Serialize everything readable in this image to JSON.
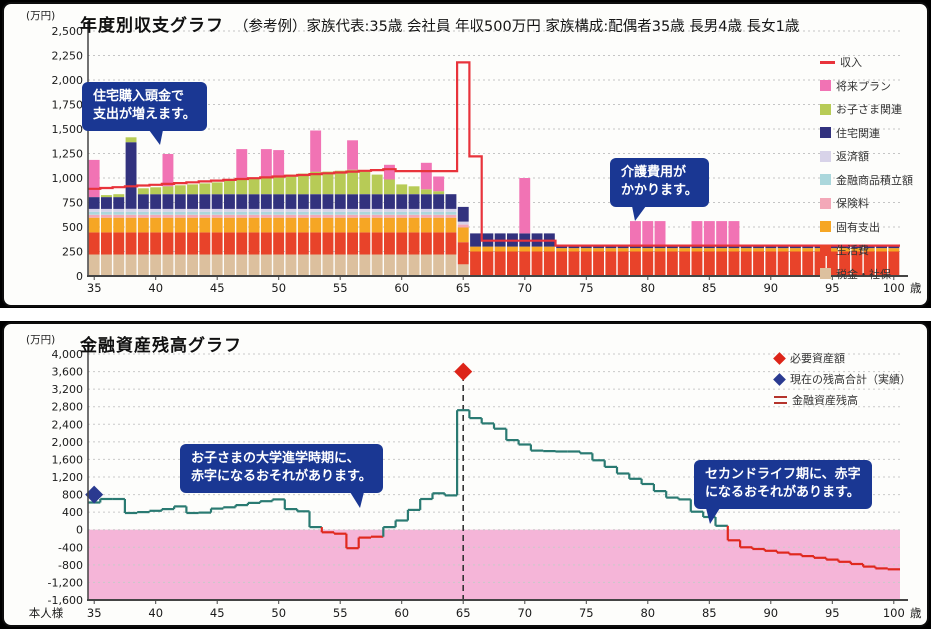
{
  "top_chart": {
    "unit_label": "(万円)",
    "title": "年度別収支グラフ",
    "subtitle": "（参考例）家族代表:35歳 会社員 年収500万円 家族構成:配偶者35歳 長男4歳 長女1歳",
    "annotations": {
      "house": {
        "line1": "住宅購入頭金で",
        "line2": "支出が増えます。"
      },
      "care": {
        "line1": "介護費用が",
        "line2": "かかります。"
      }
    }
  },
  "bottom_chart": {
    "unit_label": "(万円)",
    "title": "金融資産残高グラフ",
    "x_axis_person_label": "本人様",
    "annotations": {
      "college": {
        "line1": "お子さまの大学進学時期に、",
        "line2": "赤字になるおそれがあります。"
      },
      "second_life": {
        "line1": "セカンドライフ期に、赤字",
        "line2": "になるおそれがあります。"
      }
    }
  },
  "chart_data": [
    {
      "type": "bar",
      "stacked": true,
      "title": "年度別収支グラフ",
      "x_start": 35,
      "x_end": 100,
      "x_ticks": [
        35,
        40,
        45,
        50,
        55,
        60,
        65,
        70,
        75,
        80,
        85,
        90,
        95,
        100
      ],
      "x_unit": "歳",
      "ylabel": "(万円)",
      "ylim": [
        0,
        2500
      ],
      "ytick_step": 250,
      "grid": true,
      "legend_position": "top-right",
      "series": [
        {
          "name": "税金・社保",
          "color": "#dcc09e",
          "values": [
            220,
            220,
            220,
            220,
            220,
            220,
            220,
            220,
            220,
            220,
            220,
            220,
            220,
            220,
            220,
            220,
            220,
            220,
            220,
            220,
            220,
            220,
            220,
            220,
            220,
            220,
            220,
            220,
            220,
            220,
            120,
            0,
            0,
            0,
            0,
            0,
            0,
            0,
            0,
            0,
            0,
            0,
            0,
            0,
            0,
            0,
            0,
            0,
            0,
            0,
            0,
            0,
            0,
            0,
            0,
            0,
            0,
            0,
            0,
            0,
            0,
            0,
            0,
            0,
            0,
            0
          ]
        },
        {
          "name": "生活費",
          "color": "#e8432a",
          "values": [
            225,
            225,
            225,
            225,
            225,
            225,
            225,
            225,
            225,
            225,
            225,
            225,
            225,
            225,
            225,
            225,
            225,
            225,
            225,
            225,
            225,
            225,
            225,
            225,
            225,
            225,
            225,
            225,
            225,
            225,
            225,
            250,
            250,
            250,
            250,
            250,
            250,
            250,
            250,
            250,
            250,
            250,
            250,
            250,
            250,
            250,
            250,
            250,
            250,
            250,
            250,
            250,
            250,
            250,
            250,
            250,
            250,
            250,
            250,
            250,
            250,
            250,
            250,
            250,
            250,
            250
          ]
        },
        {
          "name": "固有支出",
          "color": "#f6a624",
          "values": [
            150,
            150,
            150,
            150,
            150,
            150,
            150,
            150,
            150,
            150,
            150,
            150,
            150,
            150,
            150,
            150,
            150,
            150,
            150,
            150,
            150,
            150,
            150,
            150,
            150,
            150,
            150,
            150,
            150,
            150,
            150,
            50,
            50,
            50,
            50,
            50,
            50,
            50,
            35,
            35,
            35,
            35,
            35,
            35,
            35,
            35,
            35,
            35,
            35,
            35,
            35,
            35,
            35,
            35,
            35,
            35,
            35,
            35,
            35,
            35,
            35,
            35,
            35,
            35,
            35,
            35
          ]
        },
        {
          "name": "保険料",
          "color": "#f3a8b8",
          "values": [
            30,
            30,
            30,
            30,
            30,
            30,
            30,
            30,
            30,
            30,
            30,
            30,
            30,
            30,
            30,
            30,
            30,
            30,
            30,
            30,
            30,
            30,
            30,
            30,
            30,
            30,
            30,
            30,
            30,
            30,
            30,
            0,
            0,
            0,
            0,
            0,
            0,
            0,
            0,
            0,
            0,
            0,
            0,
            0,
            0,
            0,
            0,
            0,
            0,
            0,
            0,
            0,
            0,
            0,
            0,
            0,
            0,
            0,
            0,
            0,
            0,
            0,
            0,
            0,
            0,
            0
          ]
        },
        {
          "name": "金融商品積立額",
          "color": "#abd7dc",
          "values": [
            30,
            30,
            30,
            30,
            30,
            30,
            30,
            30,
            30,
            30,
            30,
            30,
            30,
            30,
            30,
            30,
            30,
            30,
            30,
            30,
            30,
            30,
            30,
            30,
            30,
            30,
            30,
            30,
            30,
            30,
            0,
            0,
            0,
            0,
            0,
            0,
            0,
            0,
            0,
            0,
            0,
            0,
            0,
            0,
            0,
            0,
            0,
            0,
            0,
            0,
            0,
            0,
            0,
            0,
            0,
            0,
            0,
            0,
            0,
            0,
            0,
            0,
            0,
            0,
            0,
            0
          ]
        },
        {
          "name": "返済額",
          "color": "#d8d3e9",
          "values": [
            30,
            30,
            30,
            30,
            30,
            30,
            30,
            30,
            30,
            30,
            30,
            30,
            30,
            30,
            30,
            30,
            30,
            30,
            30,
            30,
            30,
            30,
            30,
            30,
            30,
            30,
            30,
            30,
            30,
            30,
            30,
            0,
            0,
            0,
            0,
            0,
            0,
            0,
            0,
            0,
            0,
            0,
            0,
            0,
            0,
            0,
            0,
            0,
            0,
            0,
            0,
            0,
            0,
            0,
            0,
            0,
            0,
            0,
            0,
            0,
            0,
            0,
            0,
            0,
            0,
            0
          ]
        },
        {
          "name": "住宅関連",
          "color": "#32327e",
          "values": [
            120,
            120,
            120,
            680,
            150,
            150,
            150,
            150,
            150,
            150,
            150,
            150,
            150,
            150,
            150,
            150,
            150,
            150,
            150,
            150,
            150,
            150,
            150,
            150,
            150,
            150,
            150,
            150,
            150,
            150,
            150,
            135,
            135,
            135,
            135,
            135,
            135,
            135,
            20,
            20,
            20,
            20,
            20,
            20,
            20,
            20,
            20,
            20,
            20,
            20,
            20,
            20,
            20,
            20,
            20,
            20,
            20,
            20,
            20,
            20,
            20,
            20,
            20,
            20,
            20,
            20
          ]
        },
        {
          "name": "お子さま関連",
          "color": "#b7cb56",
          "values": [
            0,
            20,
            30,
            50,
            60,
            70,
            80,
            90,
            100,
            110,
            120,
            140,
            160,
            170,
            180,
            190,
            200,
            210,
            230,
            230,
            240,
            250,
            230,
            200,
            150,
            100,
            80,
            50,
            30,
            0,
            0,
            0,
            0,
            0,
            0,
            0,
            0,
            0,
            0,
            0,
            0,
            0,
            0,
            0,
            0,
            0,
            0,
            0,
            0,
            0,
            0,
            0,
            0,
            0,
            0,
            0,
            0,
            0,
            0,
            0,
            0,
            0,
            0,
            0,
            0,
            0
          ]
        },
        {
          "name": "将来プラン",
          "color": "#f173b4",
          "values": [
            380,
            0,
            0,
            0,
            0,
            0,
            330,
            0,
            0,
            0,
            0,
            0,
            300,
            0,
            280,
            260,
            0,
            0,
            420,
            0,
            0,
            300,
            0,
            0,
            150,
            0,
            0,
            270,
            150,
            0,
            0,
            0,
            0,
            0,
            0,
            565,
            0,
            0,
            0,
            0,
            0,
            0,
            0,
            0,
            255,
            255,
            255,
            0,
            0,
            255,
            255,
            255,
            255,
            0,
            0,
            0,
            0,
            0,
            0,
            0,
            0,
            0,
            0,
            0,
            0,
            0
          ]
        }
      ],
      "line": {
        "name": "収入",
        "color": "#e8333b",
        "values": [
          890,
          898,
          906,
          915,
          923,
          931,
          940,
          948,
          956,
          965,
          973,
          981,
          990,
          998,
          1006,
          1015,
          1023,
          1031,
          1040,
          1048,
          1056,
          1065,
          1073,
          1081,
          1090,
          1070,
          1070,
          1070,
          1070,
          1070,
          2180,
          1220,
          360,
          360,
          360,
          360,
          360,
          360,
          310,
          310,
          310,
          310,
          310,
          310,
          310,
          310,
          310,
          310,
          310,
          310,
          310,
          310,
          310,
          310,
          310,
          310,
          310,
          310,
          310,
          310,
          310,
          310,
          310,
          310,
          310,
          310
        ]
      },
      "legend": [
        {
          "label": "収入",
          "swatch": "line",
          "color": "#e8333b"
        },
        {
          "label": "将来プラン",
          "swatch": "square",
          "color": "#f173b4"
        },
        {
          "label": "お子さま関連",
          "swatch": "square",
          "color": "#b7cb56"
        },
        {
          "label": "住宅関連",
          "swatch": "square",
          "color": "#32327e"
        },
        {
          "label": "返済額",
          "swatch": "square",
          "color": "#d8d3e9"
        },
        {
          "label": "金融商品積立額",
          "swatch": "square",
          "color": "#abd7dc"
        },
        {
          "label": "保険料",
          "swatch": "square",
          "color": "#f3a8b8"
        },
        {
          "label": "固有支出",
          "swatch": "square",
          "color": "#f6a624"
        },
        {
          "label": "生活費",
          "swatch": "square",
          "color": "#e8432a"
        },
        {
          "label": "税金・社保",
          "swatch": "square",
          "color": "#dcc09e"
        }
      ]
    },
    {
      "type": "line",
      "step": true,
      "title": "金融資産残高グラフ",
      "x_start": 35,
      "x_end": 100,
      "x_ticks": [
        35,
        40,
        45,
        50,
        55,
        60,
        65,
        70,
        75,
        80,
        85,
        90,
        95,
        100
      ],
      "x_unit": "歳",
      "ylabel": "(万円)",
      "ylim": [
        -1600,
        4000
      ],
      "ytick_step": 400,
      "grid": true,
      "legend_position": "top-right",
      "line_color_positive": "#2a7a72",
      "line_color_negative": "#e0281e",
      "negative_region_color": "#f5b5d8",
      "vline_x": 65,
      "values": [
        620,
        700,
        700,
        380,
        400,
        430,
        470,
        530,
        380,
        390,
        480,
        510,
        560,
        610,
        650,
        690,
        470,
        420,
        60,
        -60,
        -90,
        -420,
        -180,
        -160,
        60,
        210,
        450,
        700,
        830,
        780,
        2720,
        2540,
        2420,
        2300,
        2040,
        1940,
        1800,
        1790,
        1780,
        1780,
        1740,
        1580,
        1430,
        1280,
        1160,
        1040,
        880,
        730,
        690,
        410,
        290,
        90,
        -240,
        -400,
        -440,
        -480,
        -520,
        -560,
        -600,
        -640,
        -680,
        -730,
        -780,
        -840,
        -880,
        -900
      ],
      "markers": [
        {
          "label": "必要資産額",
          "x": 65,
          "y": 3600,
          "color": "#dd2418"
        },
        {
          "label": "現在の残高合計（実績）",
          "x": 35,
          "y": 800,
          "color": "#2a3a90"
        }
      ],
      "legend": [
        {
          "label": "必要資産額",
          "swatch": "diamond",
          "color": "#dd2418"
        },
        {
          "label": "現在の残高合計（実績）",
          "swatch": "diamond",
          "color": "#2a3a90"
        },
        {
          "label": "金融資産残高",
          "swatch": "dlines",
          "color": "#b5342c"
        }
      ]
    }
  ]
}
